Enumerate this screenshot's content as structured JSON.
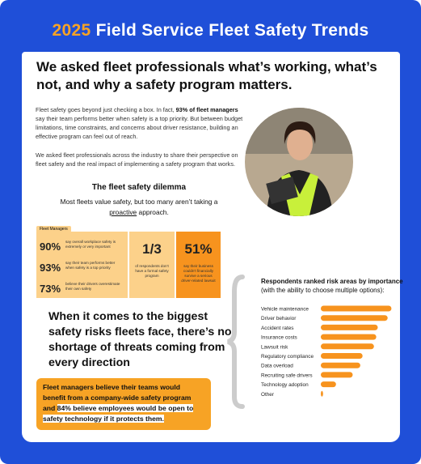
{
  "header": {
    "year": "2025",
    "title": "Field Service Fleet Safety Trends"
  },
  "headline": "We asked fleet professionals what’s working, what’s not, and why a safety program matters.",
  "intro": [
    [
      "Fleet safety goes beyond just checking a box. In fact, ",
      "93% of fleet managers",
      " say their team performs better when safety is a top priority. But between budget limitations, time constraints, and concerns about driver resistance, building an effective program can feel out of reach."
    ],
    [
      "We asked fleet professionals across the industry to share their perspective on fleet safety and the real impact of implementing a safety program that works."
    ]
  ],
  "dilemma": {
    "title": "The fleet safety dilemma",
    "subtitle_start": "Most fleets value safety, but too many aren’t taking a ",
    "subtitle_em": "proactive",
    "subtitle_end": " approach."
  },
  "stats": {
    "tag": "Fleet Managers",
    "managers": [
      {
        "value": "90%",
        "text": "say overall workplace safety is extremely or very important"
      },
      {
        "value": "93%",
        "text": "say their team performs better when safety is a top priority"
      },
      {
        "value": "73%",
        "text": "believe their drivers overestimate their own safety"
      }
    ],
    "program": {
      "value": "1/3",
      "text": "of respondents don't have a formal safety program"
    },
    "lawsuit": {
      "value": "51%",
      "text": "say their business couldn't financially survive a serious driver-related lawsuit"
    }
  },
  "callout": "When it comes to the biggest safety risks fleets face, there’s no shortage of threats coming from every direction",
  "highlight": {
    "start": "Fleet managers believe their teams would benefit from a company-wide safety program and ",
    "em": "84% believe employees would be open to safety technology if it protects them."
  },
  "chart_data": {
    "type": "bar",
    "orientation": "horizontal",
    "title": "Respondents ranked risk areas by importance",
    "subtitle": "(with the ability to choose multiple options):",
    "categories": [
      "Vehicle maintenance",
      "Driver behavior",
      "Accident rates",
      "Insurance costs",
      "Lawsuit risk",
      "Regulatory compliance",
      "Data overload",
      "Recruiting safe drivers",
      "Technology adoption",
      "Other"
    ],
    "values": [
      93,
      88,
      75,
      73,
      70,
      55,
      52,
      42,
      20,
      3
    ],
    "xlim": [
      0,
      100
    ],
    "color": "#f7931e"
  }
}
